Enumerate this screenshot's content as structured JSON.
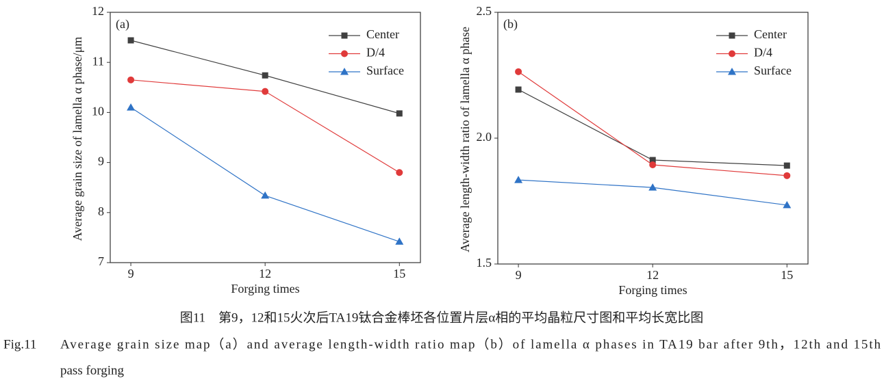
{
  "chart_data": [
    {
      "type": "line",
      "panel_label": "(a)",
      "x_label": "Forging times",
      "y_label": "Average grain size of lamella α phase/μm",
      "x": [
        9,
        12,
        15
      ],
      "xlim": [
        8.54,
        15.47
      ],
      "xticks": [
        9,
        12,
        15
      ],
      "ylim": [
        7,
        12
      ],
      "yticks": [
        7,
        8,
        9,
        10,
        11,
        12
      ],
      "legend": "upper right",
      "series": [
        {
          "name": "Center",
          "color": "#404040",
          "marker": "square",
          "values": [
            11.44,
            10.74,
            9.98
          ]
        },
        {
          "name": "D/4",
          "color": "#e03a3a",
          "marker": "circle",
          "values": [
            10.65,
            10.42,
            8.8
          ]
        },
        {
          "name": "Surface",
          "color": "#2f73c6",
          "marker": "triangle",
          "values": [
            10.1,
            8.34,
            7.42
          ]
        }
      ]
    },
    {
      "type": "line",
      "panel_label": "(b)",
      "x_label": "Forging times",
      "y_label": "Average length-width ratio of lamella α phase",
      "x": [
        9,
        12,
        15
      ],
      "xlim": [
        8.54,
        15.47
      ],
      "xticks": [
        9,
        12,
        15
      ],
      "ylim": [
        1.5,
        2.5
      ],
      "yticks": [
        1.5,
        {
          "value": 2,
          "label": "2.0"
        },
        2.5
      ],
      "legend": "upper right",
      "series": [
        {
          "name": "Center",
          "color": "#404040",
          "marker": "square",
          "values": [
            2.193,
            1.913,
            1.891
          ]
        },
        {
          "name": "D/4",
          "color": "#e03a3a",
          "marker": "circle",
          "values": [
            2.264,
            1.894,
            1.851
          ]
        },
        {
          "name": "Surface",
          "color": "#2f73c6",
          "marker": "triangle",
          "values": [
            1.834,
            1.804,
            1.734
          ]
        }
      ]
    }
  ],
  "caption_zh": "图11　第9，12和15火次后TA19钛合金棒坯各位置片层α相的平均晶粒尺寸图和平均长宽比图",
  "caption_en": {
    "label": "Fig.11",
    "lines": [
      "Average grain size map（a）and average length-width ratio map（b）of lamella α phases in TA19 bar after 9th，12th and 15th",
      "pass forging"
    ]
  }
}
